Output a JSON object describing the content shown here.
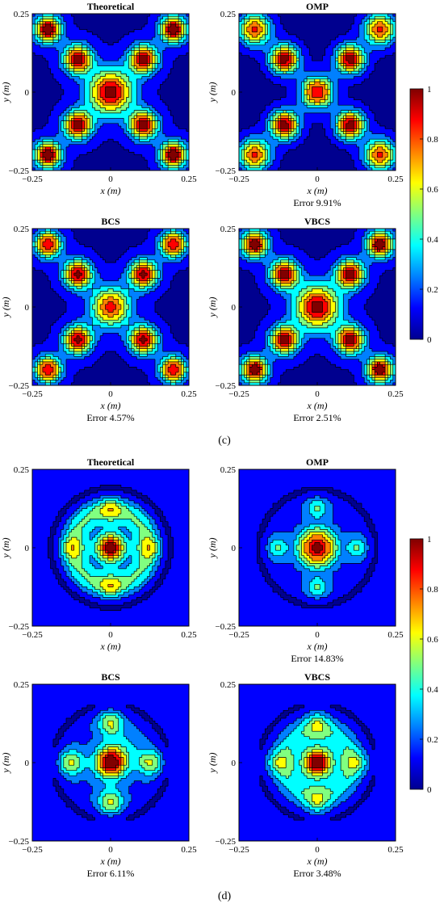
{
  "colormap": [
    "#00008f",
    "#0000ff",
    "#0080ff",
    "#00ffff",
    "#80ff80",
    "#ffff00",
    "#ff8000",
    "#ff0000",
    "#800000"
  ],
  "chart_data": [
    {
      "type": "heatmap",
      "group": "c",
      "title": "Theoretical",
      "pattern": "c-theoretical",
      "xlabel": "x (m)",
      "ylabel": "y (m)",
      "xlim": [
        -0.25,
        0.25
      ],
      "ylim": [
        -0.25,
        0.25
      ],
      "xticks": [
        "−0.25",
        "0",
        "0.25"
      ],
      "yticks": [
        "0.25",
        "0",
        "−0.25"
      ],
      "error": ""
    },
    {
      "type": "heatmap",
      "group": "c",
      "title": "OMP",
      "pattern": "c-omp",
      "xlabel": "x (m)",
      "ylabel": "y (m)",
      "xlim": [
        -0.25,
        0.25
      ],
      "ylim": [
        -0.25,
        0.25
      ],
      "xticks": [
        "−0.25",
        "0",
        "0.25"
      ],
      "yticks": [
        "0.25",
        "0",
        "−0.25"
      ],
      "error": "Error 9.91%"
    },
    {
      "type": "heatmap",
      "group": "c",
      "title": "BCS",
      "pattern": "c-bcs",
      "xlabel": "x (m)",
      "ylabel": "y (m)",
      "xlim": [
        -0.25,
        0.25
      ],
      "ylim": [
        -0.25,
        0.25
      ],
      "xticks": [
        "−0.25",
        "0",
        "0.25"
      ],
      "yticks": [
        "0.25",
        "0",
        "−0.25"
      ],
      "error": "Error 4.57%"
    },
    {
      "type": "heatmap",
      "group": "c",
      "title": "VBCS",
      "pattern": "c-vbcs",
      "xlabel": "x (m)",
      "ylabel": "y (m)",
      "xlim": [
        -0.25,
        0.25
      ],
      "ylim": [
        -0.25,
        0.25
      ],
      "xticks": [
        "−0.25",
        "0",
        "0.25"
      ],
      "yticks": [
        "0.25",
        "0",
        "−0.25"
      ],
      "error": "Error 2.51%"
    },
    {
      "type": "heatmap",
      "group": "d",
      "title": "Theoretical",
      "pattern": "d-theoretical",
      "xlabel": "x (m)",
      "ylabel": "y (m)",
      "xlim": [
        -0.25,
        0.25
      ],
      "ylim": [
        -0.25,
        0.25
      ],
      "xticks": [
        "−0.25",
        "0",
        "0.25"
      ],
      "yticks": [
        "0.25",
        "0",
        "−0.25"
      ],
      "error": ""
    },
    {
      "type": "heatmap",
      "group": "d",
      "title": "OMP",
      "pattern": "d-omp",
      "xlabel": "x (m)",
      "ylabel": "y (m)",
      "xlim": [
        -0.25,
        0.25
      ],
      "ylim": [
        -0.25,
        0.25
      ],
      "xticks": [
        "−0.25",
        "0",
        "0.25"
      ],
      "yticks": [
        "0.25",
        "0",
        "−0.25"
      ],
      "error": "Error 14.83%"
    },
    {
      "type": "heatmap",
      "group": "d",
      "title": "BCS",
      "pattern": "d-bcs",
      "xlabel": "x (m)",
      "ylabel": "y (m)",
      "xlim": [
        -0.25,
        0.25
      ],
      "ylim": [
        -0.25,
        0.25
      ],
      "xticks": [
        "−0.25",
        "0",
        "0.25"
      ],
      "yticks": [
        "0.25",
        "0",
        "−0.25"
      ],
      "error": "Error 6.11%"
    },
    {
      "type": "heatmap",
      "group": "d",
      "title": "VBCS",
      "pattern": "d-vbcs",
      "xlabel": "x (m)",
      "ylabel": "y (m)",
      "xlim": [
        -0.25,
        0.25
      ],
      "ylim": [
        -0.25,
        0.25
      ],
      "xticks": [
        "−0.25",
        "0",
        "0.25"
      ],
      "yticks": [
        "0.25",
        "0",
        "−0.25"
      ],
      "error": "Error 3.48%"
    }
  ],
  "colorbars": [
    {
      "group": "c",
      "range": [
        0,
        1
      ],
      "ticks": [
        "1",
        "0.8",
        "0.6",
        "0.4",
        "0.2",
        "0"
      ]
    },
    {
      "group": "d",
      "range": [
        0,
        1
      ],
      "ticks": [
        "1",
        "0.8",
        "0.6",
        "0.4",
        "0.2",
        "0"
      ]
    }
  ],
  "panel_labels": {
    "c": "(c)",
    "d": "(d)"
  }
}
